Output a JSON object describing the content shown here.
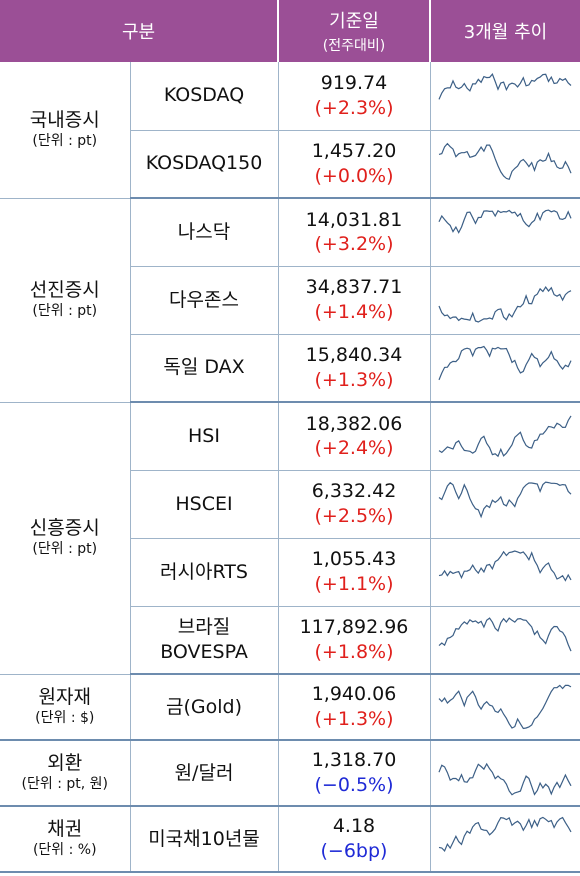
{
  "header": {
    "category": "구분",
    "base_date": "기준일",
    "base_date_sub": "(전주대비)",
    "trend": "3개월 추이"
  },
  "groups": [
    {
      "name": "국내증시",
      "unit": "(단위 : pt)",
      "rows": [
        {
          "name": "KOSDAQ",
          "value": "919.74",
          "change": "(+2.3%)",
          "direction": "up",
          "trend_icon": "sparkline-chart"
        },
        {
          "name": "KOSDAQ150",
          "value": "1,457.20",
          "change": "(+0.0%)",
          "direction": "up",
          "trend_icon": "sparkline-chart"
        }
      ]
    },
    {
      "name": "선진증시",
      "unit": "(단위 : pt)",
      "rows": [
        {
          "name": "나스닥",
          "value": "14,031.81",
          "change": "(+3.2%)",
          "direction": "up",
          "trend_icon": "sparkline-chart"
        },
        {
          "name": "다우존스",
          "value": "34,837.71",
          "change": "(+1.4%)",
          "direction": "up",
          "trend_icon": "sparkline-chart"
        },
        {
          "name": "독일 DAX",
          "value": "15,840.34",
          "change": "(+1.3%)",
          "direction": "up",
          "trend_icon": "sparkline-chart"
        }
      ]
    },
    {
      "name": "신흥증시",
      "unit": "(단위 : pt)",
      "rows": [
        {
          "name": "HSI",
          "value": "18,382.06",
          "change": "(+2.4%)",
          "direction": "up",
          "trend_icon": "sparkline-chart"
        },
        {
          "name": "HSCEI",
          "value": "6,332.42",
          "change": "(+2.5%)",
          "direction": "up",
          "trend_icon": "sparkline-chart"
        },
        {
          "name": "러시아RTS",
          "value": "1,055.43",
          "change": "(+1.1%)",
          "direction": "up",
          "trend_icon": "sparkline-chart"
        },
        {
          "name": "브라질 BOVESPA",
          "value": "117,892.96",
          "change": "(+1.8%)",
          "direction": "up",
          "trend_icon": "sparkline-chart"
        }
      ]
    },
    {
      "name": "원자재",
      "unit": "(단위 : $)",
      "rows": [
        {
          "name": "금(Gold)",
          "value": "1,940.06",
          "change": "(+1.3%)",
          "direction": "up",
          "trend_icon": "sparkline-chart"
        }
      ]
    },
    {
      "name": "외환",
      "unit": "(단위 : pt, 원)",
      "rows": [
        {
          "name": "원/달러",
          "value": "1,318.70",
          "change": "(−0.5%)",
          "direction": "down",
          "trend_icon": "sparkline-chart"
        }
      ]
    },
    {
      "name": "채권",
      "unit": "(단위 : %)",
      "rows": [
        {
          "name": "미국채10년물",
          "value": "4.18",
          "change": "(−6bp)",
          "direction": "down",
          "trend_icon": "sparkline-chart"
        }
      ]
    }
  ],
  "colors": {
    "header_bg": "#9b4f96",
    "up": "#e0201c",
    "down": "#1f2ad6",
    "sparkline": "#3c5f86"
  }
}
